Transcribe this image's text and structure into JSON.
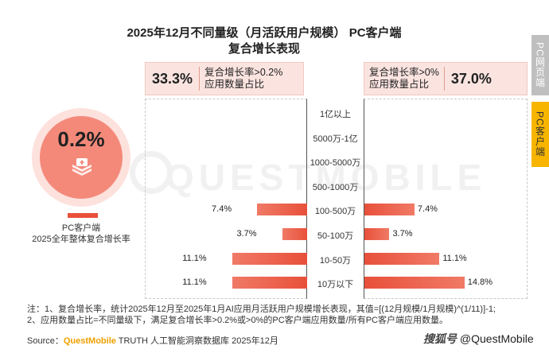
{
  "title_line1": "2025年12月不同量级（月活跃用户规模） PC客户端",
  "title_line2": "复合增长表现",
  "side_tabs": {
    "web": "PC网页端",
    "client": "PC客户端"
  },
  "left_header": {
    "pct": "33.3%",
    "line1": "复合增长率>0.2%",
    "line2": "应用数量占比"
  },
  "right_header": {
    "pct": "37.0%",
    "line1": "复合增长率>0%",
    "line2": "应用数量占比"
  },
  "summary": {
    "value": "0.2%",
    "label1": "PC客户端",
    "label2": "2025全年整体复合增长率"
  },
  "chart_data": {
    "type": "bar",
    "categories": [
      "1亿以上",
      "5000万-1亿",
      "1000-5000万",
      "500-1000万",
      "100-500万",
      "50-100万",
      "10-50万",
      "10万以下"
    ],
    "series": [
      {
        "values": [
          null,
          null,
          null,
          null,
          7.4,
          3.7,
          11.1,
          11.1
        ],
        "labels": [
          "",
          "",
          "",
          "",
          "7.4%",
          "3.7%",
          "11.1%",
          "11.1%"
        ]
      },
      {
        "values": [
          null,
          null,
          null,
          null,
          7.4,
          3.7,
          11.1,
          14.8
        ],
        "labels": [
          "",
          "",
          "",
          "",
          "7.4%",
          "3.7%",
          "11.1%",
          "14.8%"
        ]
      }
    ],
    "xlim": [
      0,
      20
    ]
  },
  "notes": {
    "line1": "注：1、复合增长率，统计2025年12月至2025年1月AI应用月活跃用户规模增长表现，其值=[(12月规模/1月规模)^(1/11)]-1;",
    "line2": "2、应用数量占比=不同量级下，满足复合增长率>0.2%或>0%的PC客户端应用数量/所有PC客户端应用数量。"
  },
  "source": {
    "prefix": "Source：",
    "brand": "QuestMobile",
    "rest": " TRUTH 人工智能洞察数据库 2025年12月"
  },
  "watermark": "QUESTMOBILE",
  "credit": {
    "site": "搜狐号",
    "handle": " @QuestMobile"
  },
  "colors": {
    "bar": "#e8503a",
    "accent": "#f7b500",
    "header_bg": "#fbe4e0"
  }
}
